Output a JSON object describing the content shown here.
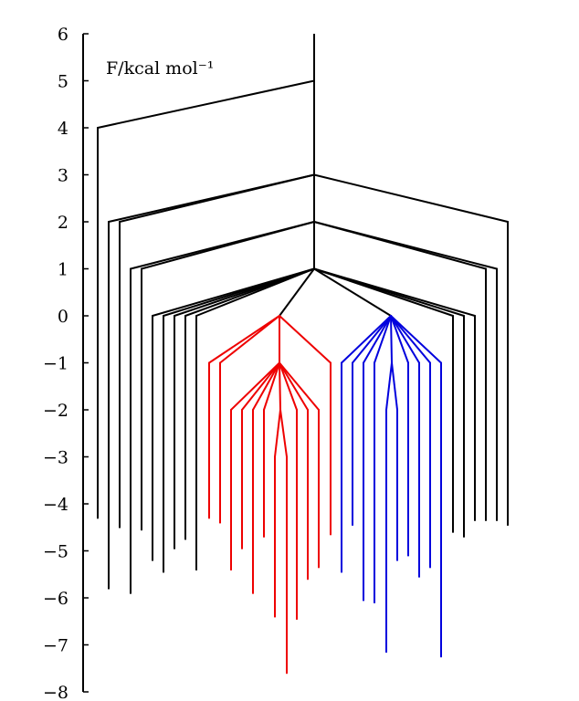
{
  "chart_data": {
    "type": "disconnectivity-graph",
    "ylabel": "F/kcal mol⁻¹",
    "ylim": [
      -8,
      6
    ],
    "yticks": [
      {
        "value": 6,
        "label": "6"
      },
      {
        "value": 5,
        "label": "5"
      },
      {
        "value": 4,
        "label": "4"
      },
      {
        "value": 3,
        "label": "3"
      },
      {
        "value": 2,
        "label": "2"
      },
      {
        "value": 1,
        "label": "1"
      },
      {
        "value": 0,
        "label": "0"
      },
      {
        "value": -1,
        "label": "−1"
      },
      {
        "value": -2,
        "label": "−2"
      },
      {
        "value": -3,
        "label": "−3"
      },
      {
        "value": -4,
        "label": "−4"
      },
      {
        "value": -5,
        "label": "−5"
      },
      {
        "value": -6,
        "label": "−6"
      },
      {
        "value": -7,
        "label": "−7"
      },
      {
        "value": -8,
        "label": "−8"
      }
    ],
    "colors": {
      "black": "#000000",
      "red": "#ee0000",
      "blue": "#0000dd"
    },
    "trunk": {
      "x": 344,
      "top": 6,
      "bottom": 1
    },
    "segments": [
      {
        "c": "black",
        "x1": 344,
        "y1": 5,
        "x2": 107,
        "y2": 4
      },
      {
        "c": "black",
        "x1": 107,
        "y1": 4,
        "x2": 107,
        "y2": -4.3
      },
      {
        "c": "black",
        "x1": 344,
        "y1": 3,
        "x2": 119,
        "y2": 2
      },
      {
        "c": "black",
        "x1": 344,
        "y1": 3,
        "x2": 131,
        "y2": 2
      },
      {
        "c": "black",
        "x1": 344,
        "y1": 3,
        "x2": 556,
        "y2": 2
      },
      {
        "c": "black",
        "x1": 119,
        "y1": 2,
        "x2": 119,
        "y2": -5.8
      },
      {
        "c": "black",
        "x1": 131,
        "y1": 2,
        "x2": 131,
        "y2": -4.5
      },
      {
        "c": "black",
        "x1": 556,
        "y1": 2,
        "x2": 556,
        "y2": -4.45
      },
      {
        "c": "black",
        "x1": 344,
        "y1": 2,
        "x2": 143,
        "y2": 1
      },
      {
        "c": "black",
        "x1": 344,
        "y1": 2,
        "x2": 155,
        "y2": 1
      },
      {
        "c": "black",
        "x1": 344,
        "y1": 2,
        "x2": 532,
        "y2": 1
      },
      {
        "c": "black",
        "x1": 344,
        "y1": 2,
        "x2": 544,
        "y2": 1
      },
      {
        "c": "black",
        "x1": 143,
        "y1": 1,
        "x2": 143,
        "y2": -5.9
      },
      {
        "c": "black",
        "x1": 155,
        "y1": 1,
        "x2": 155,
        "y2": -4.55
      },
      {
        "c": "black",
        "x1": 532,
        "y1": 1,
        "x2": 532,
        "y2": -4.35
      },
      {
        "c": "black",
        "x1": 544,
        "y1": 1,
        "x2": 544,
        "y2": -4.35
      },
      {
        "c": "black",
        "x1": 344,
        "y1": 1,
        "x2": 167,
        "y2": 0
      },
      {
        "c": "black",
        "x1": 344,
        "y1": 1,
        "x2": 179,
        "y2": 0
      },
      {
        "c": "black",
        "x1": 344,
        "y1": 1,
        "x2": 191,
        "y2": 0
      },
      {
        "c": "black",
        "x1": 344,
        "y1": 1,
        "x2": 203,
        "y2": 0
      },
      {
        "c": "black",
        "x1": 344,
        "y1": 1,
        "x2": 215,
        "y2": 0
      },
      {
        "c": "black",
        "x1": 344,
        "y1": 1,
        "x2": 496,
        "y2": 0
      },
      {
        "c": "black",
        "x1": 344,
        "y1": 1,
        "x2": 508,
        "y2": 0
      },
      {
        "c": "black",
        "x1": 344,
        "y1": 1,
        "x2": 520,
        "y2": 0
      },
      {
        "c": "black",
        "x1": 167,
        "y1": 0,
        "x2": 167,
        "y2": -5.2
      },
      {
        "c": "black",
        "x1": 179,
        "y1": 0,
        "x2": 179,
        "y2": -5.45
      },
      {
        "c": "black",
        "x1": 191,
        "y1": 0,
        "x2": 191,
        "y2": -4.95
      },
      {
        "c": "black",
        "x1": 203,
        "y1": 0,
        "x2": 203,
        "y2": -4.75
      },
      {
        "c": "black",
        "x1": 215,
        "y1": 0,
        "x2": 215,
        "y2": -5.4
      },
      {
        "c": "black",
        "x1": 496,
        "y1": 0,
        "x2": 496,
        "y2": -4.6
      },
      {
        "c": "black",
        "x1": 508,
        "y1": 0,
        "x2": 508,
        "y2": -4.7
      },
      {
        "c": "black",
        "x1": 520,
        "y1": 0,
        "x2": 520,
        "y2": -4.35
      },
      {
        "c": "black",
        "x1": 344,
        "y1": 1,
        "x2": 306,
        "y2": 0
      },
      {
        "c": "black",
        "x1": 344,
        "y1": 1,
        "x2": 428,
        "y2": 0
      },
      {
        "c": "red",
        "x1": 306,
        "y1": 0,
        "x2": 229,
        "y2": -1
      },
      {
        "c": "red",
        "x1": 306,
        "y1": 0,
        "x2": 241,
        "y2": -1
      },
      {
        "c": "red",
        "x1": 306,
        "y1": 0,
        "x2": 306,
        "y2": -1
      },
      {
        "c": "red",
        "x1": 306,
        "y1": 0,
        "x2": 362,
        "y2": -1
      },
      {
        "c": "red",
        "x1": 229,
        "y1": -1,
        "x2": 229,
        "y2": -4.3
      },
      {
        "c": "red",
        "x1": 241,
        "y1": -1,
        "x2": 241,
        "y2": -4.4
      },
      {
        "c": "red",
        "x1": 362,
        "y1": -1,
        "x2": 362,
        "y2": -4.65
      },
      {
        "c": "red",
        "x1": 306,
        "y1": -1,
        "x2": 253,
        "y2": -2
      },
      {
        "c": "red",
        "x1": 306,
        "y1": -1,
        "x2": 265,
        "y2": -2
      },
      {
        "c": "red",
        "x1": 306,
        "y1": -1,
        "x2": 277,
        "y2": -2
      },
      {
        "c": "red",
        "x1": 306,
        "y1": -1,
        "x2": 289,
        "y2": -2
      },
      {
        "c": "red",
        "x1": 306,
        "y1": -1,
        "x2": 307,
        "y2": -2
      },
      {
        "c": "red",
        "x1": 306,
        "y1": -1,
        "x2": 325,
        "y2": -2
      },
      {
        "c": "red",
        "x1": 306,
        "y1": -1,
        "x2": 337,
        "y2": -2
      },
      {
        "c": "red",
        "x1": 306,
        "y1": -1,
        "x2": 349,
        "y2": -2
      },
      {
        "c": "red",
        "x1": 253,
        "y1": -2,
        "x2": 253,
        "y2": -5.4
      },
      {
        "c": "red",
        "x1": 265,
        "y1": -2,
        "x2": 265,
        "y2": -4.95
      },
      {
        "c": "red",
        "x1": 277,
        "y1": -2,
        "x2": 277,
        "y2": -5.9
      },
      {
        "c": "red",
        "x1": 289,
        "y1": -2,
        "x2": 289,
        "y2": -4.7
      },
      {
        "c": "red",
        "x1": 325,
        "y1": -2,
        "x2": 325,
        "y2": -6.45
      },
      {
        "c": "red",
        "x1": 337,
        "y1": -2,
        "x2": 337,
        "y2": -5.6
      },
      {
        "c": "red",
        "x1": 349,
        "y1": -2,
        "x2": 349,
        "y2": -5.35
      },
      {
        "c": "red",
        "x1": 307,
        "y1": -2,
        "x2": 301,
        "y2": -3
      },
      {
        "c": "red",
        "x1": 307,
        "y1": -2,
        "x2": 314,
        "y2": -3
      },
      {
        "c": "red",
        "x1": 301,
        "y1": -3,
        "x2": 301,
        "y2": -6.4
      },
      {
        "c": "red",
        "x1": 314,
        "y1": -3,
        "x2": 314,
        "y2": -7.6
      },
      {
        "c": "blue",
        "x1": 428,
        "y1": 0,
        "x2": 374,
        "y2": -1
      },
      {
        "c": "blue",
        "x1": 428,
        "y1": 0,
        "x2": 386,
        "y2": -1
      },
      {
        "c": "blue",
        "x1": 428,
        "y1": 0,
        "x2": 398,
        "y2": -1
      },
      {
        "c": "blue",
        "x1": 428,
        "y1": 0,
        "x2": 410,
        "y2": -1
      },
      {
        "c": "blue",
        "x1": 428,
        "y1": 0,
        "x2": 429,
        "y2": -1
      },
      {
        "c": "blue",
        "x1": 428,
        "y1": 0,
        "x2": 447,
        "y2": -1
      },
      {
        "c": "blue",
        "x1": 428,
        "y1": 0,
        "x2": 459,
        "y2": -1
      },
      {
        "c": "blue",
        "x1": 428,
        "y1": 0,
        "x2": 471,
        "y2": -1
      },
      {
        "c": "blue",
        "x1": 428,
        "y1": 0,
        "x2": 483,
        "y2": -1
      },
      {
        "c": "blue",
        "x1": 374,
        "y1": -1,
        "x2": 374,
        "y2": -5.45
      },
      {
        "c": "blue",
        "x1": 386,
        "y1": -1,
        "x2": 386,
        "y2": -4.45
      },
      {
        "c": "blue",
        "x1": 398,
        "y1": -1,
        "x2": 398,
        "y2": -6.05
      },
      {
        "c": "blue",
        "x1": 410,
        "y1": -1,
        "x2": 410,
        "y2": -6.1
      },
      {
        "c": "blue",
        "x1": 447,
        "y1": -1,
        "x2": 447,
        "y2": -5.1
      },
      {
        "c": "blue",
        "x1": 459,
        "y1": -1,
        "x2": 459,
        "y2": -5.55
      },
      {
        "c": "blue",
        "x1": 471,
        "y1": -1,
        "x2": 471,
        "y2": -5.35
      },
      {
        "c": "blue",
        "x1": 483,
        "y1": -1,
        "x2": 483,
        "y2": -7.25
      },
      {
        "c": "blue",
        "x1": 429,
        "y1": -1,
        "x2": 423,
        "y2": -2
      },
      {
        "c": "blue",
        "x1": 429,
        "y1": -1,
        "x2": 435,
        "y2": -2
      },
      {
        "c": "blue",
        "x1": 423,
        "y1": -2,
        "x2": 423,
        "y2": -7.15
      },
      {
        "c": "blue",
        "x1": 435,
        "y1": -2,
        "x2": 435,
        "y2": -5.2
      }
    ]
  }
}
